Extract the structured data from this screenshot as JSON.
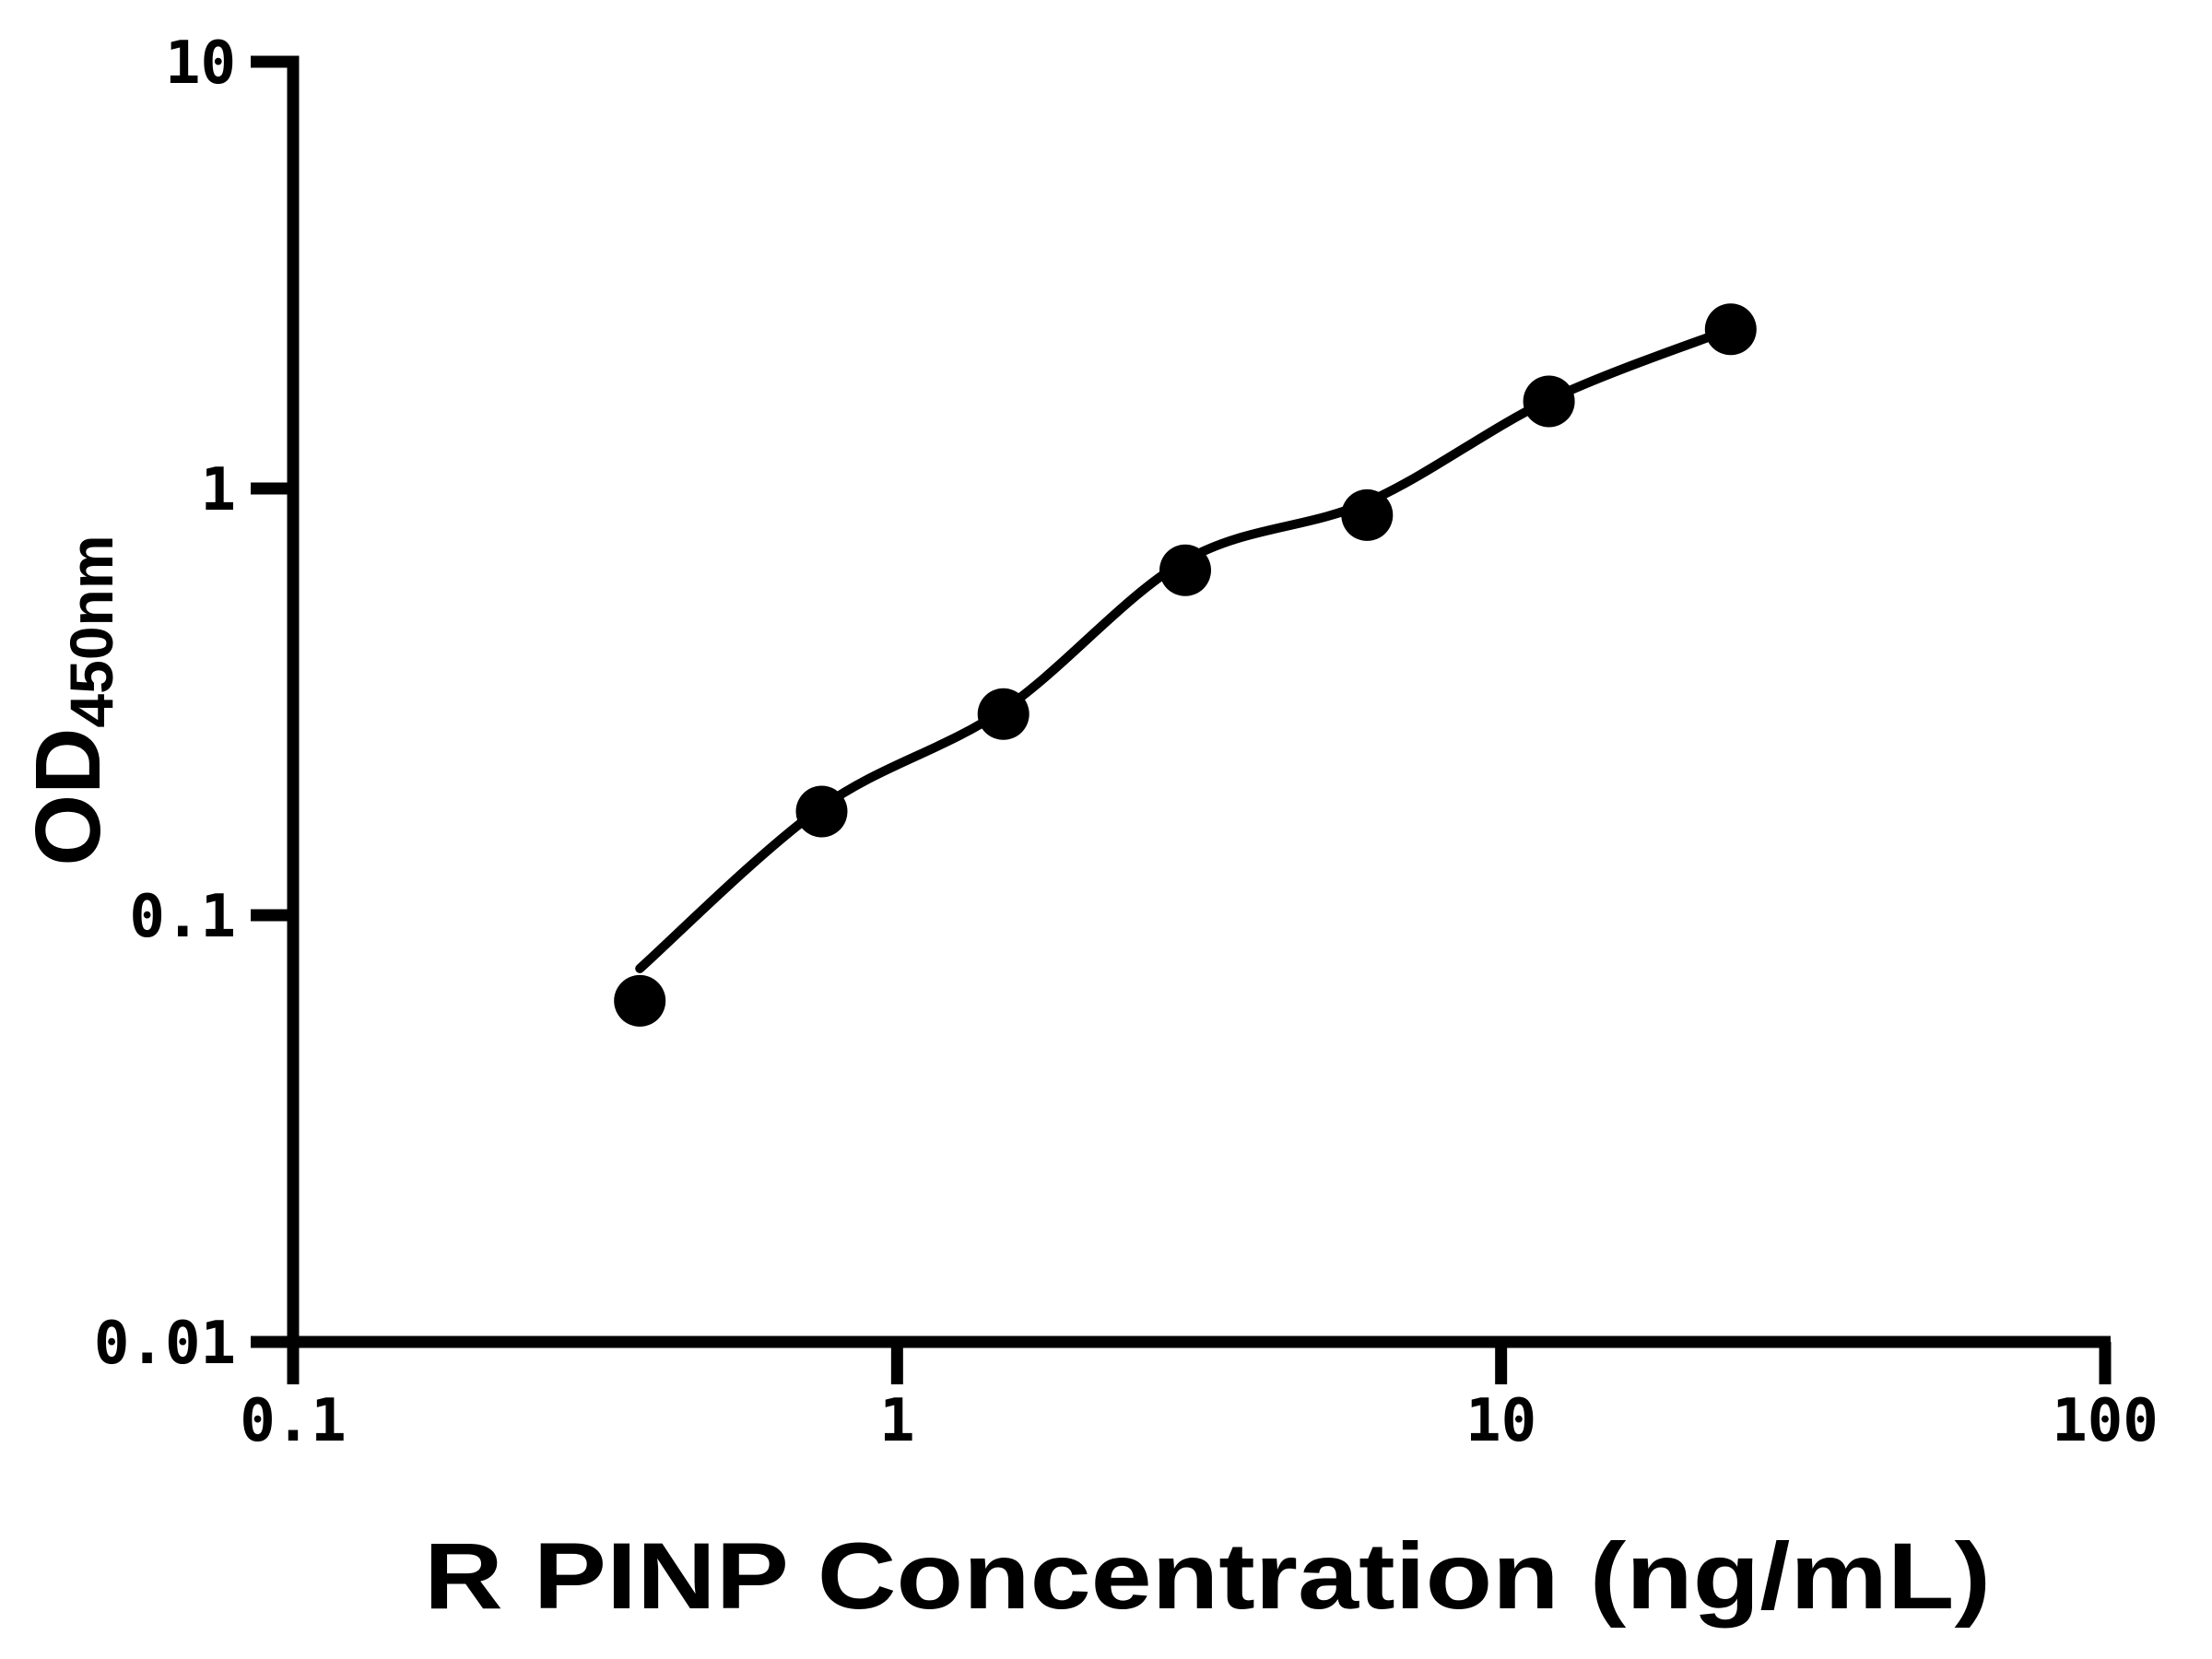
{
  "figure": {
    "background_color": "#ffffff",
    "ink_color": "#000000"
  },
  "chart_data": {
    "type": "scatter",
    "title": "",
    "xlabel": "R PINP Concentration (ng/mL)",
    "ylabel_main": "OD",
    "ylabel_sub": "450nm",
    "x_scale": "log10",
    "y_scale": "log10",
    "xlim": [
      0.1,
      100
    ],
    "ylim": [
      0.01,
      10
    ],
    "grid": false,
    "legend": false,
    "x_ticks": [
      {
        "value": 0.1,
        "label": "0.1"
      },
      {
        "value": 1,
        "label": "1"
      },
      {
        "value": 10,
        "label": "10"
      },
      {
        "value": 100,
        "label": "100"
      }
    ],
    "y_ticks": [
      {
        "value": 0.01,
        "label": "0.01"
      },
      {
        "value": 0.1,
        "label": "0.1"
      },
      {
        "value": 1,
        "label": "1"
      },
      {
        "value": 10,
        "label": "10"
      }
    ],
    "series": [
      {
        "name": "standard-curve-points",
        "marker": "filled-circle",
        "color": "#000000",
        "points": [
          {
            "x": 0.375,
            "y": 0.063
          },
          {
            "x": 0.75,
            "y": 0.175
          },
          {
            "x": 1.5,
            "y": 0.296
          },
          {
            "x": 3,
            "y": 0.643
          },
          {
            "x": 6,
            "y": 0.866
          },
          {
            "x": 12,
            "y": 1.6
          },
          {
            "x": 24,
            "y": 2.36
          }
        ]
      }
    ],
    "fit_curve": {
      "name": "4pl-fit-line",
      "color": "#000000",
      "anchors": [
        {
          "x": 0.375,
          "y": 0.075
        },
        {
          "x": 0.75,
          "y": 0.179
        },
        {
          "x": 1.5,
          "y": 0.303
        },
        {
          "x": 3,
          "y": 0.678
        },
        {
          "x": 6,
          "y": 0.928
        },
        {
          "x": 12,
          "y": 1.612
        },
        {
          "x": 24,
          "y": 2.364
        }
      ]
    }
  }
}
